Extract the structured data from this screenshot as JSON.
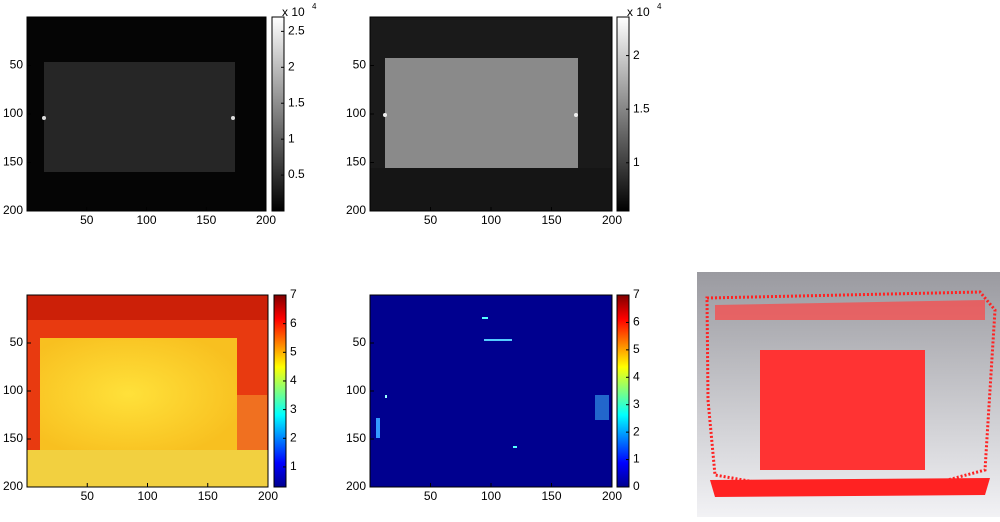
{
  "chart_data": [
    {
      "type": "image",
      "colormap": "gray",
      "xlim": [
        0,
        200
      ],
      "ylim": [
        0,
        200
      ],
      "xticks": [
        50,
        100,
        150,
        200
      ],
      "yticks": [
        50,
        100,
        150,
        200
      ],
      "clim": [
        0,
        2.7
      ],
      "cticks": [
        0.5,
        1,
        1.5,
        2,
        2.5
      ],
      "colorbar_label": "x 10",
      "colorbar_exponent": "4"
    },
    {
      "type": "image",
      "colormap": "gray",
      "xlim": [
        0,
        200
      ],
      "ylim": [
        0,
        200
      ],
      "xticks": [
        50,
        100,
        150,
        200
      ],
      "yticks": [
        50,
        100,
        150,
        200
      ],
      "clim": [
        0.55,
        2.36
      ],
      "cticks": [
        1,
        1.5,
        2
      ],
      "colorbar_label": "x 10",
      "colorbar_exponent": "4"
    },
    {
      "type": "image",
      "colormap": "jet",
      "xlim": [
        0,
        200
      ],
      "ylim": [
        0,
        200
      ],
      "xticks": [
        50,
        100,
        150,
        200
      ],
      "yticks": [
        50,
        100,
        150,
        200
      ],
      "clim": [
        0.3,
        7
      ],
      "cticks": [
        1,
        2,
        3,
        4,
        5,
        6,
        7
      ]
    },
    {
      "type": "image",
      "colormap": "jet",
      "xlim": [
        0,
        200
      ],
      "ylim": [
        0,
        200
      ],
      "xticks": [
        50,
        100,
        150,
        200
      ],
      "yticks": [
        50,
        100,
        150,
        200
      ],
      "clim": [
        0,
        7
      ],
      "cticks": [
        0,
        1,
        2,
        3,
        4,
        5,
        6,
        7
      ]
    }
  ]
}
